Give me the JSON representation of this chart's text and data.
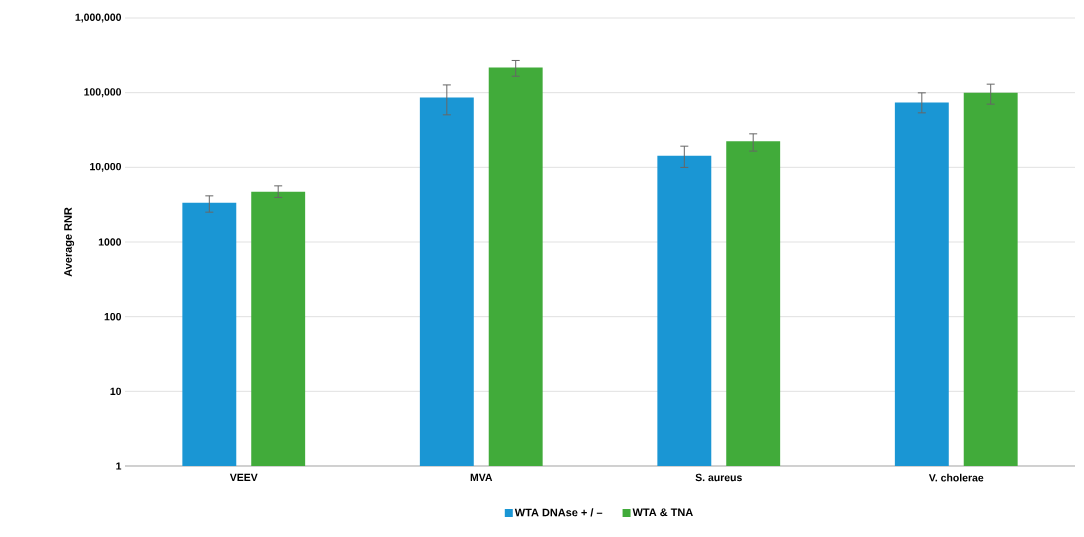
{
  "chart_data": {
    "type": "bar",
    "ylabel": "Average RNR",
    "categories": [
      "VEEV",
      "MVA",
      "S. aureus",
      "V. cholerae"
    ],
    "series": [
      {
        "name": "WTA DNAse + / –",
        "color": "#1a96d4",
        "values": [
          3350,
          86300,
          14300,
          74000
        ],
        "errors": [
          [
            2510,
            4150
          ],
          [
            50500,
            127000
          ],
          [
            9970,
            19200
          ],
          [
            53700,
            99500
          ]
        ]
      },
      {
        "name": "WTA & TNA",
        "color": "#41ab3a",
        "values": [
          4700,
          217000,
          22400,
          100000
        ],
        "errors": [
          [
            3950,
            5650
          ],
          [
            166000,
            270000
          ],
          [
            16500,
            28100
          ],
          [
            70200,
            130000
          ]
        ]
      }
    ],
    "log": "y",
    "ylim": [
      1,
      1000000
    ],
    "yticks": [
      1,
      10,
      100,
      1000,
      {
        "value": 10000,
        "label": "10,000"
      },
      {
        "value": 100000,
        "label": "100,000"
      },
      {
        "value": 1000000,
        "label": "1,000,000"
      }
    ],
    "grid": "y",
    "legend": "bottom"
  }
}
